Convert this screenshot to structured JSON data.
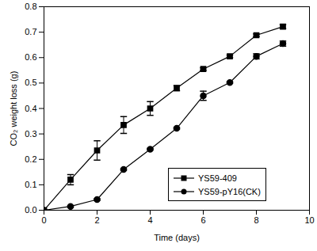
{
  "chart_data": {
    "type": "line",
    "x_label": "Time (days)",
    "y_label": "CO₂ weight loss (g)",
    "xlim": [
      0,
      10
    ],
    "xticks": [
      0,
      2,
      4,
      6,
      8,
      10
    ],
    "ylim": [
      0,
      0.8
    ],
    "yticks": [
      {
        "value": 0,
        "label": "0.0"
      },
      0.1,
      0.2,
      0.3,
      0.4,
      0.5,
      0.6,
      0.7,
      0.8
    ],
    "legend": "bottom-right",
    "grid": false,
    "x": [
      0,
      1,
      2,
      3,
      4,
      5,
      6,
      7,
      8,
      9
    ],
    "series": [
      {
        "name": "YS59-409",
        "color": "#000000",
        "marker": "square",
        "line_style": "solid",
        "values": [
          0,
          0.12,
          0.235,
          0.335,
          0.4,
          0.48,
          0.555,
          0.605,
          0.688,
          0.722
        ],
        "errors": [
          0,
          0.02,
          0.038,
          0.033,
          0.027,
          0.01,
          0.005,
          0.005,
          0.005,
          0.008
        ]
      },
      {
        "name": "YS59-pY16(CK)",
        "color": "#000000",
        "marker": "circle",
        "line_style": "solid",
        "values": [
          0,
          0.015,
          0.042,
          0.16,
          0.24,
          0.322,
          0.45,
          0.502,
          0.605,
          0.655
        ],
        "errors": [
          0,
          0.003,
          0.003,
          0.003,
          0.003,
          0.003,
          0.018,
          0.003,
          0.01,
          0.01
        ]
      }
    ]
  }
}
